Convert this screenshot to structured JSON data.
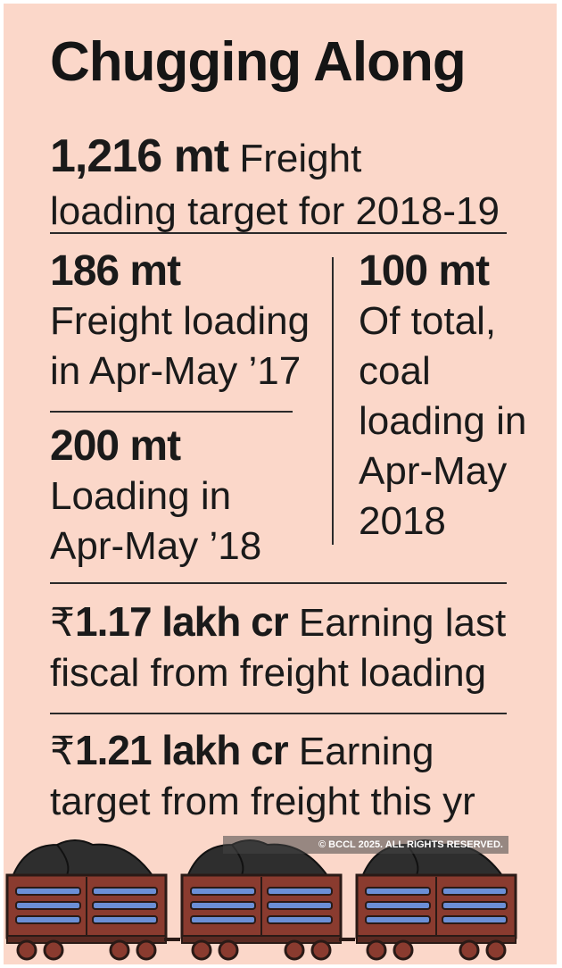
{
  "title": "Chugging Along",
  "target": {
    "value": "1,216 mt",
    "text1": "Freight",
    "text2": "loading target for 2018-19"
  },
  "left_top": {
    "value": "186 mt",
    "lines": [
      "Freight loading",
      "in Apr-May ’17"
    ]
  },
  "left_bottom": {
    "value": "200 mt",
    "lines": [
      "Loading in",
      "Apr-May ’18"
    ]
  },
  "right": {
    "value": "100 mt",
    "lines": [
      "Of total,",
      "coal",
      "loading in",
      "Apr-May",
      "2018"
    ]
  },
  "earning_last": {
    "currency": "₹",
    "value": "1.17 lakh cr",
    "text1": "Earning last",
    "text2": "fiscal from freight loading"
  },
  "earning_target": {
    "currency": "₹",
    "value": "1.21 lakh cr",
    "text1": "Earning",
    "text2": "target from freight  this yr"
  },
  "copyright": "© BCCL 2025. ALL RIGHTS RESERVED.",
  "colors": {
    "background": "#fbd7c9",
    "wagon": "#8a3b2f",
    "slats": "#6b8fd6",
    "coal": "#2e2e2e"
  },
  "icons": [
    "coal-wagon-icon"
  ]
}
